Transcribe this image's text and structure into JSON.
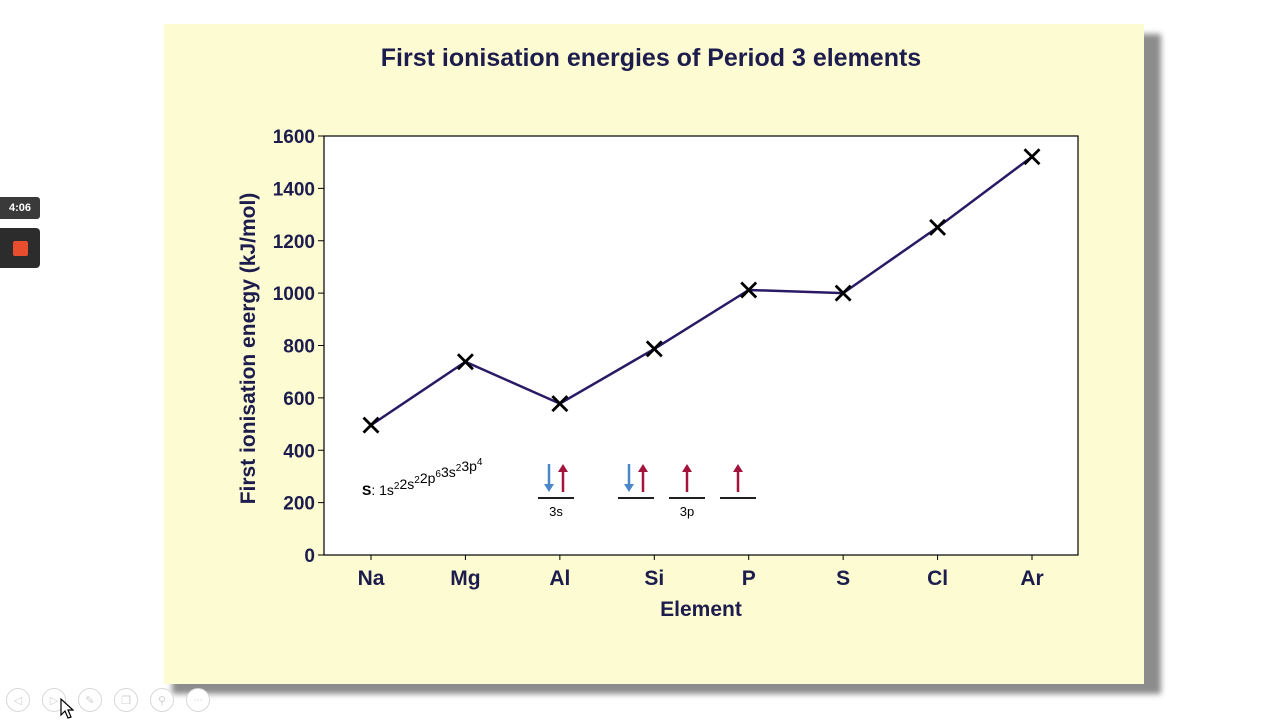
{
  "player": {
    "timer_text": "4:06"
  },
  "colors": {
    "slide_bg": "#fdfbd2",
    "title_text": "#1c1c4d",
    "line": "#2a1a66",
    "spin_down": "#4a86c8",
    "spin_up": "#a4133c"
  },
  "chart_data": {
    "type": "line",
    "title": "First ionisation energies of Period 3 elements",
    "xlabel": "Element",
    "ylabel": "First ionisation energy (kJ/mol)",
    "categories": [
      "Na",
      "Mg",
      "Al",
      "Si",
      "P",
      "S",
      "Cl",
      "Ar"
    ],
    "values": [
      496,
      738,
      578,
      787,
      1012,
      1000,
      1251,
      1521
    ],
    "ylim": [
      0,
      1600
    ],
    "yticks": [
      "0",
      "200",
      "400",
      "600",
      "800",
      "1000",
      "1200",
      "1400",
      "1600"
    ],
    "marker": "x",
    "grid": false,
    "legend": "none",
    "annotation": {
      "prefix": "S",
      "separator": ": ",
      "config": [
        {
          "text": "1s",
          "sup": "2"
        },
        {
          "text": "2s",
          "sup": "2"
        },
        {
          "text": "2p",
          "sup": "6"
        },
        {
          "text": "3s",
          "sup": "2"
        },
        {
          "text": "3p",
          "sup": "4"
        }
      ],
      "orbitals": [
        {
          "spins": [
            "down",
            "up"
          ],
          "label": "3s"
        },
        {
          "spins": [
            "down",
            "up"
          ],
          "label": ""
        },
        {
          "spins": [
            "up"
          ],
          "label": "3p"
        },
        {
          "spins": [
            "up"
          ],
          "label": ""
        }
      ]
    }
  },
  "toolbar": {
    "buttons": [
      {
        "name": "previous-slide-button",
        "icon": "◁"
      },
      {
        "name": "next-slide-button",
        "icon": "▷"
      },
      {
        "name": "pen-tool-button",
        "icon": "✎"
      },
      {
        "name": "slides-overview-button",
        "icon": "❐"
      },
      {
        "name": "zoom-button",
        "icon": "⚲"
      },
      {
        "name": "more-options-button",
        "icon": "∙∙∙"
      }
    ]
  }
}
